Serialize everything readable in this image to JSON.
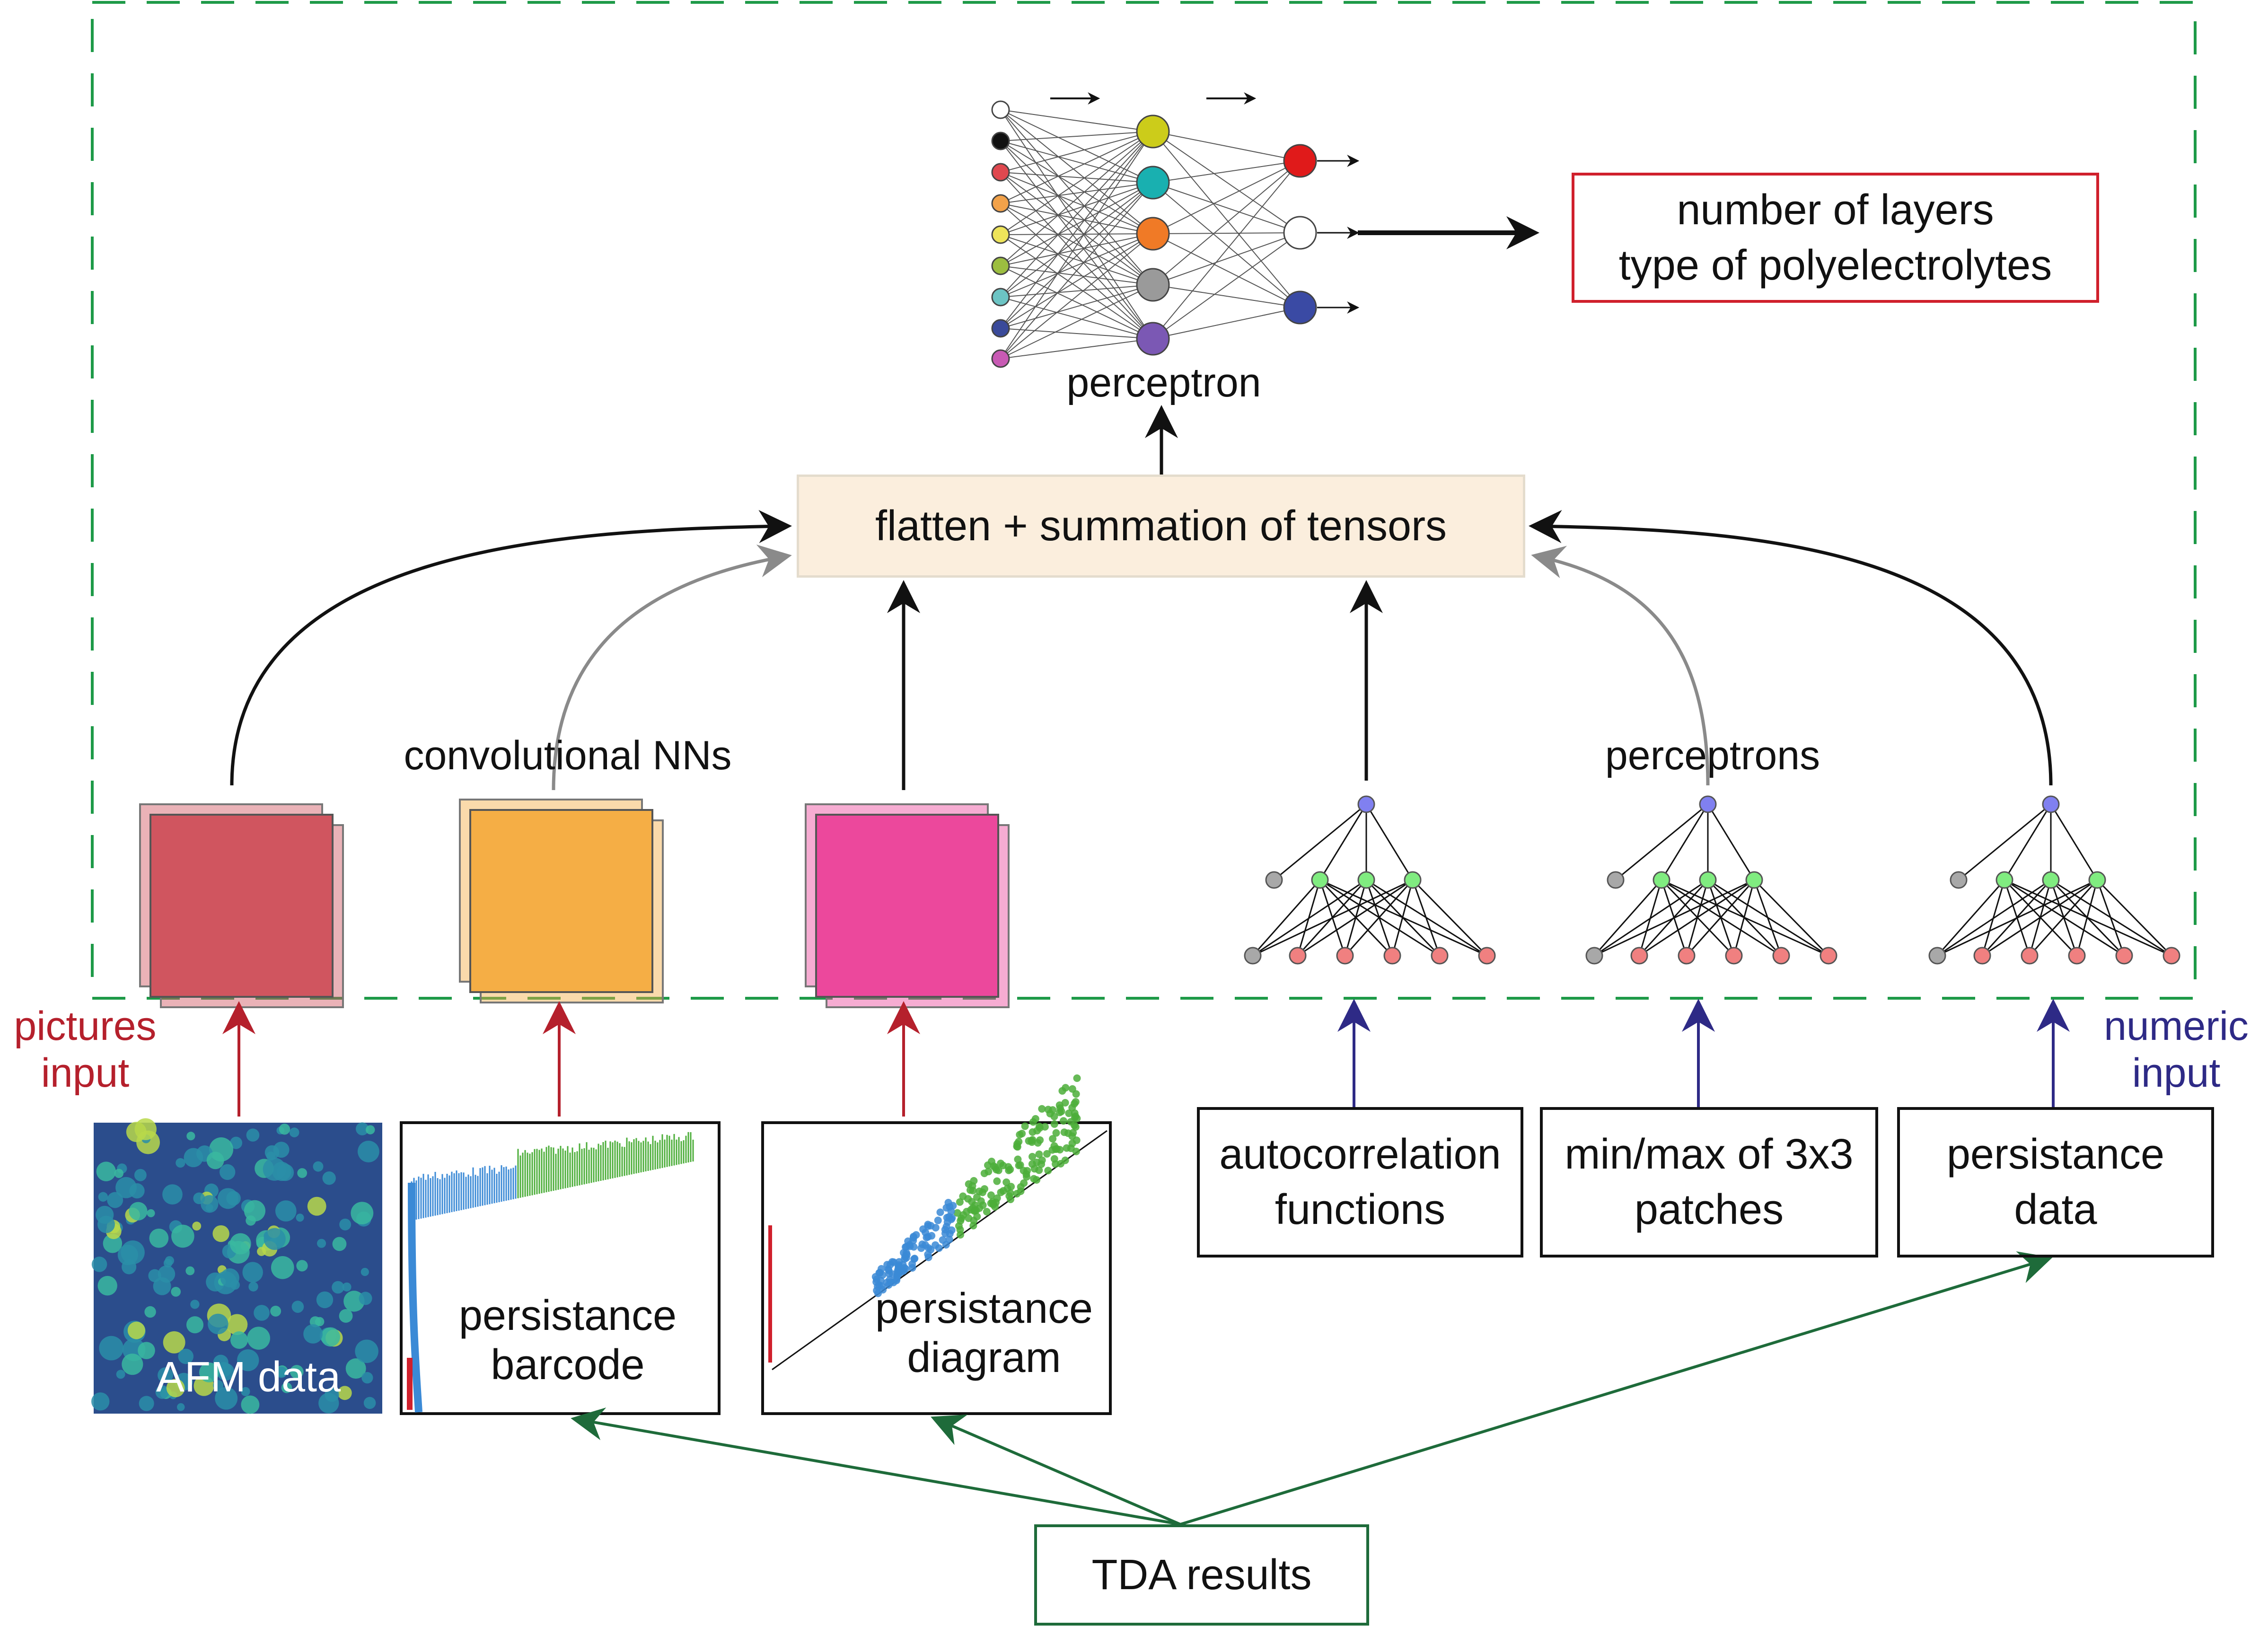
{
  "output_box": {
    "line1": "number of layers",
    "line2": "type of polyelectrolytes"
  },
  "perceptron_label": "perceptron",
  "flatten_label": "flatten + summation of tensors",
  "cnn_label": "convolutional NNs",
  "perceptrons_label": "perceptrons",
  "pictures_input": {
    "line1": "pictures",
    "line2": "input"
  },
  "numeric_input": {
    "line1": "numeric",
    "line2": "input"
  },
  "afm_label": "AFM data",
  "barcode_label": {
    "line1": "persistance",
    "line2": "barcode"
  },
  "diagram_label": {
    "line1": "persistance",
    "line2": "diagram"
  },
  "numeric_boxes": [
    {
      "line1": "autocorrelation",
      "line2": "functions"
    },
    {
      "line1": "min/max of 3x3",
      "line2": "patches"
    },
    {
      "line1": "persistance",
      "line2": "data"
    }
  ],
  "tda_label": "TDA results",
  "colors": {
    "frame_dash": "#1e9a48",
    "output_border": "#d0202c",
    "flatten_fill": "#fbeedd",
    "picture_arrow": "#b5202c",
    "numeric_arrow": "#2e2a86",
    "tda_arrow": "#1e6b3a",
    "cnn_red": "#d0555f",
    "cnn_orange": "#f5ae45",
    "cnn_pink": "#ec489c",
    "hidden_node": "#80ec80",
    "input_node": "#f08080",
    "top_node": "#8080f0",
    "bias_node": "#a8a8a8"
  },
  "perceptron_nodes": {
    "inputs": [
      "#ffffff",
      "#111111",
      "#e0484f",
      "#f2a24a",
      "#eee45a",
      "#9cbe40",
      "#6cc4c4",
      "#3a4a9a",
      "#c85ab4"
    ],
    "hidden": [
      "#cccc1a",
      "#19b0b0",
      "#f07a26",
      "#9a9a9a",
      "#7b58b4"
    ],
    "outputs": [
      "#e01a1a",
      "#ffffff",
      "#3a4aa4"
    ]
  }
}
